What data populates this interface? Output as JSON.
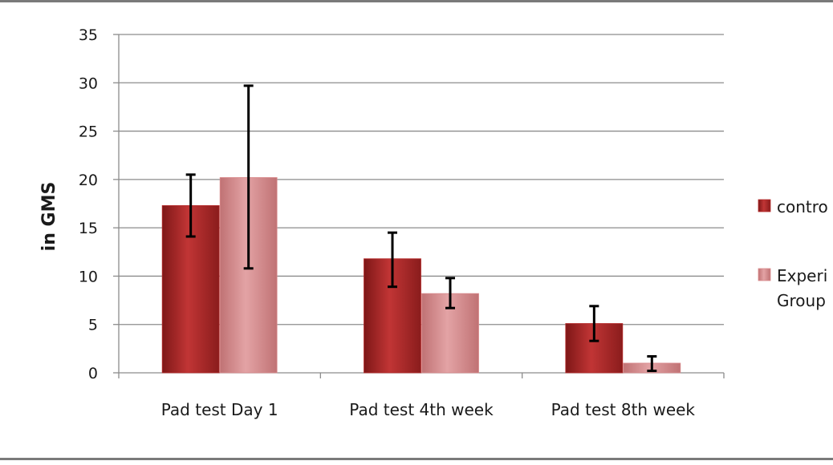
{
  "chart_data": {
    "type": "bar",
    "ylabel": "in GMS",
    "ylim": [
      0,
      35
    ],
    "yticks": [
      0,
      5,
      10,
      15,
      20,
      25,
      30,
      35
    ],
    "grid": true,
    "legend_position": "right",
    "categories": [
      "Pad test  Day 1",
      "Pad test  4th week",
      "Pad test  8th week"
    ],
    "series": [
      {
        "name": "control",
        "color": "#b52a2a",
        "values": [
          17.3,
          11.8,
          5.1
        ],
        "error_low": [
          14.1,
          8.9,
          3.3
        ],
        "error_high": [
          20.5,
          14.5,
          6.9
        ]
      },
      {
        "name": "Experimental Group",
        "color": "#d98a8c",
        "values": [
          20.2,
          8.2,
          1.0
        ],
        "error_low": [
          10.8,
          6.7,
          0.2
        ],
        "error_high": [
          29.7,
          9.8,
          1.7
        ]
      }
    ],
    "legend_entries": [
      {
        "line1": "contro",
        "line2": ""
      },
      {
        "line1": "Experi",
        "line2": "Group"
      }
    ]
  }
}
